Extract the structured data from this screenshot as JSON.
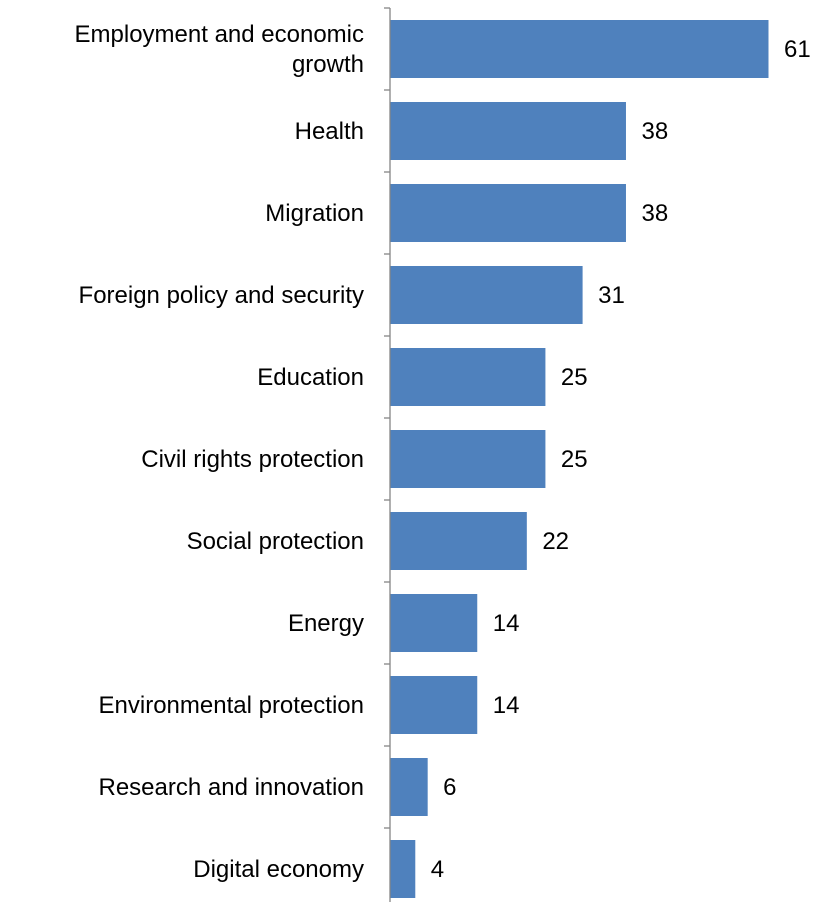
{
  "chart_data": {
    "type": "bar",
    "orientation": "horizontal",
    "categories": [
      "Employment and economic growth",
      "Health",
      "Migration",
      "Foreign policy and security",
      "Education",
      "Civil rights protection",
      "Social protection",
      "Energy",
      "Environmental protection",
      "Research and innovation",
      "Digital economy"
    ],
    "category_lines": [
      [
        "Employment and economic",
        "growth"
      ],
      [
        "Health"
      ],
      [
        "Migration"
      ],
      [
        "Foreign policy and security"
      ],
      [
        "Education"
      ],
      [
        "Civil rights protection"
      ],
      [
        "Social protection"
      ],
      [
        "Energy"
      ],
      [
        "Environmental protection"
      ],
      [
        "Research and innovation"
      ],
      [
        "Digital economy"
      ]
    ],
    "values": [
      61,
      38,
      38,
      31,
      25,
      25,
      22,
      14,
      14,
      6,
      4
    ],
    "data_labels": [
      "61",
      "38",
      "38",
      "31",
      "25",
      "25",
      "22",
      "14",
      "14",
      "6",
      "4"
    ],
    "xlim": [
      0,
      61
    ],
    "grid": false,
    "legend": "none",
    "bar_color": "#4F81BD",
    "axis_color": "#868686"
  }
}
